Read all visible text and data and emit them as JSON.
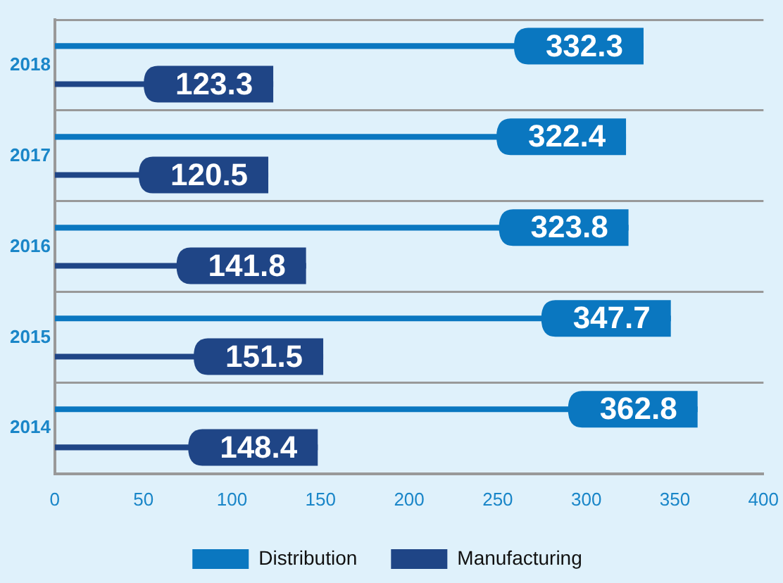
{
  "chart_data": {
    "type": "bar",
    "orientation": "horizontal",
    "categories": [
      "2018",
      "2017",
      "2016",
      "2015",
      "2014"
    ],
    "series": [
      {
        "name": "Distribution",
        "color": "#0a77c0",
        "values": [
          332.3,
          322.4,
          323.8,
          347.7,
          362.8
        ]
      },
      {
        "name": "Manufacturing",
        "color": "#1f4586",
        "values": [
          123.3,
          120.5,
          141.8,
          151.5,
          148.4
        ]
      }
    ],
    "xlim": [
      0,
      400
    ],
    "xticks": [
      0,
      50,
      100,
      150,
      200,
      250,
      300,
      350,
      400
    ],
    "grid": "y",
    "legend": "bottom",
    "data_labels": true
  }
}
